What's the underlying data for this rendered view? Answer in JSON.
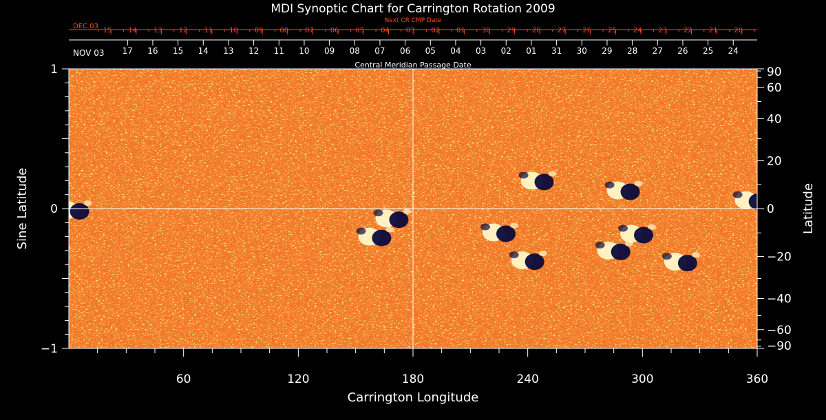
{
  "chart_data": {
    "type": "heatmap",
    "title": "MDI Synoptic Chart for Carrington Rotation 2009",
    "xlabel": "Carrington Longitude",
    "ylabel_left": "Sine Latitude",
    "ylabel_right": "Latitude",
    "top_axis_label": "Central Meridian Passage Date",
    "next_axis_label": "Next CR CMP Date",
    "xlim": [
      0,
      360
    ],
    "ylim": [
      -1,
      1
    ],
    "x_ticks": [
      60,
      120,
      180,
      240,
      300,
      360
    ],
    "y_ticks_left": [
      {
        "v": 1,
        "label": "1"
      },
      {
        "v": 0,
        "label": "0"
      },
      {
        "v": -1,
        "label": "−1"
      }
    ],
    "y_ticks_right": [
      90,
      60,
      40,
      20,
      0,
      -20,
      -40,
      -60,
      -90
    ],
    "y_ticks_right_labels": [
      "90",
      "60",
      "40",
      "20",
      "0",
      "−20",
      "−40",
      "−60",
      "−90"
    ],
    "cmp_dates": {
      "start_label": "NOV 03",
      "labels": [
        "17",
        "16",
        "15",
        "14",
        "13",
        "12",
        "11",
        "10",
        "09",
        "08",
        "07",
        "06",
        "05",
        "04",
        "03",
        "02",
        "01",
        "31",
        "30",
        "29",
        "28",
        "27",
        "26",
        "25",
        "24"
      ],
      "longitudes": [
        30.7,
        43.9,
        57.1,
        70.3,
        83.5,
        96.7,
        109.9,
        123.1,
        136.3,
        149.5,
        162.7,
        175.9,
        189.1,
        202.3,
        215.5,
        228.7,
        241.9,
        255.1,
        268.3,
        281.5,
        294.7,
        307.9,
        321.1,
        334.3,
        347.5
      ]
    },
    "next_cmp_dates": {
      "start_label": "DEC 03",
      "labels": [
        "15",
        "14",
        "13",
        "12",
        "11",
        "10",
        "09",
        "08",
        "07",
        "06",
        "05",
        "04",
        "03",
        "02",
        "01",
        "30",
        "29",
        "28",
        "27",
        "26",
        "25",
        "24",
        "23",
        "22",
        "21",
        "20"
      ],
      "longitudes": [
        22.0,
        35.2,
        48.4,
        61.6,
        74.8,
        88.0,
        101.2,
        114.4,
        127.6,
        140.8,
        154.0,
        167.2,
        180.4,
        193.6,
        206.8,
        220.0,
        233.2,
        246.4,
        259.6,
        272.8,
        286.0,
        299.2,
        312.4,
        325.6,
        338.8,
        352.0
      ]
    },
    "colors": {
      "background_field": "#ee3a08",
      "positive_flux": "#fff7c8",
      "negative_flux": "#0b0b3c",
      "axes": "#ffffff",
      "date_axis_accent": "#ff4a1a"
    },
    "active_regions": [
      {
        "lon": 2,
        "sinlat": -0.01,
        "type": "bipolar"
      },
      {
        "lon": 160,
        "sinlat": -0.2,
        "type": "bipolar"
      },
      {
        "lon": 169,
        "sinlat": -0.07,
        "type": "bipolar"
      },
      {
        "lon": 240,
        "sinlat": -0.37,
        "type": "bipolar"
      },
      {
        "lon": 245,
        "sinlat": 0.2,
        "type": "bipolar"
      },
      {
        "lon": 290,
        "sinlat": 0.13,
        "type": "bipolar"
      },
      {
        "lon": 285,
        "sinlat": -0.3,
        "type": "bipolar"
      },
      {
        "lon": 297,
        "sinlat": -0.18,
        "type": "bipolar"
      },
      {
        "lon": 320,
        "sinlat": -0.38,
        "type": "bipolar"
      },
      {
        "lon": 357,
        "sinlat": 0.06,
        "type": "bipolar"
      },
      {
        "lon": 225,
        "sinlat": -0.17,
        "type": "bipolar"
      }
    ]
  }
}
